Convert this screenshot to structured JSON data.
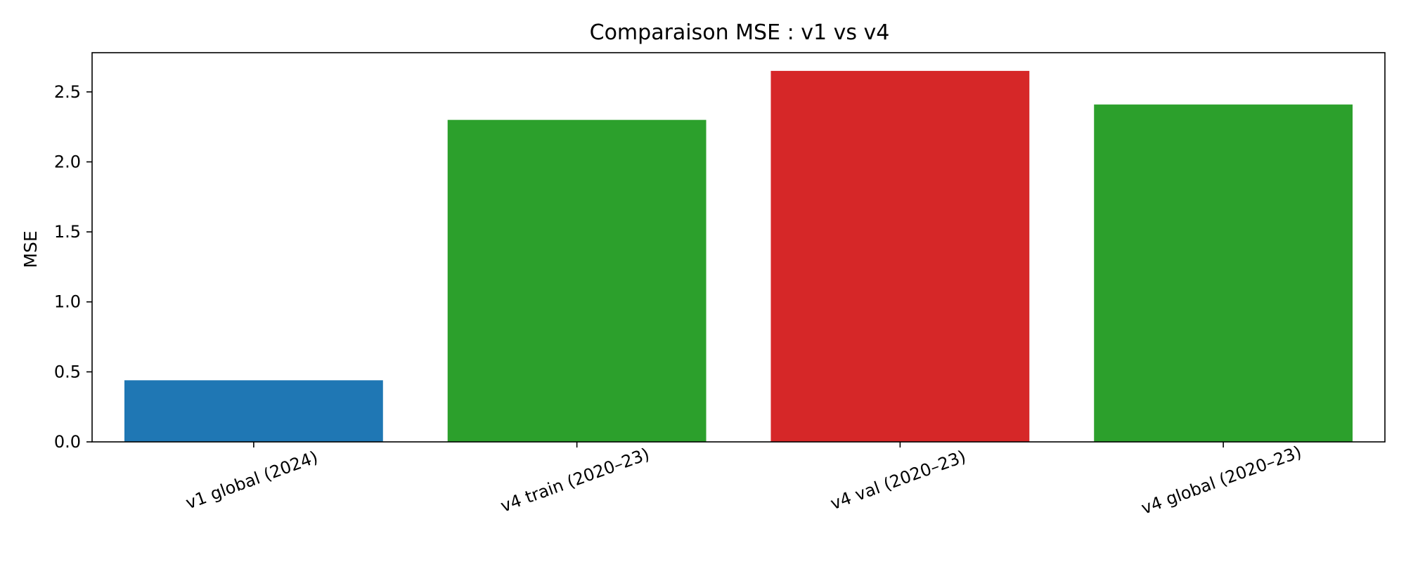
{
  "chart_data": {
    "type": "bar",
    "title": "Comparaison MSE : v1 vs v4",
    "xlabel": "",
    "ylabel": "MSE",
    "categories": [
      "v1 global (2024)",
      "v4 train (2020–23)",
      "v4 val (2020–23)",
      "v4 global (2020–23)"
    ],
    "values": [
      0.44,
      2.3,
      2.65,
      2.41
    ],
    "colors": [
      "#1f77b4",
      "#2ca02c",
      "#d62728",
      "#2ca02c"
    ],
    "ylim": [
      0,
      2.78
    ],
    "yticks": [
      0.0,
      0.5,
      1.0,
      1.5,
      2.0,
      2.5
    ],
    "ytick_labels": [
      "0.0",
      "0.5",
      "1.0",
      "1.5",
      "2.0",
      "2.5"
    ],
    "grid": false,
    "legend": "none"
  }
}
